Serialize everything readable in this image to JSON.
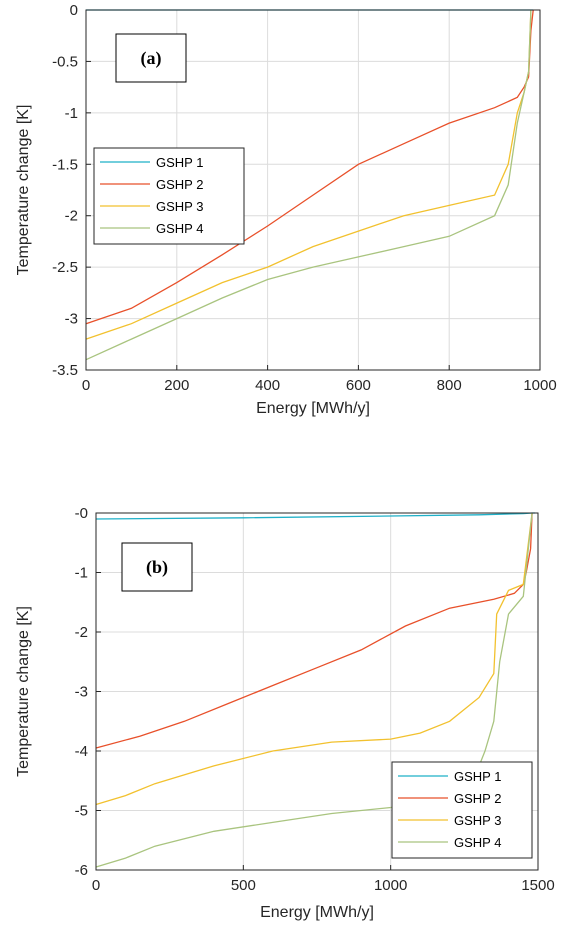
{
  "chart_data": [
    {
      "type": "line",
      "panel_label": "(a)",
      "xlabel": "Energy [MWh/y]",
      "ylabel": "Temperature change [K]",
      "xlim": [
        0,
        1000
      ],
      "ylim": [
        -3.5,
        0
      ],
      "xticks": [
        0,
        200,
        400,
        600,
        800,
        1000
      ],
      "yticks": [
        0,
        -0.5,
        -1,
        -1.5,
        -2,
        -2.5,
        -3,
        -3.5
      ],
      "xticklabels": [
        "0",
        "200",
        "400",
        "600",
        "800",
        "1000"
      ],
      "yticklabels": [
        "0",
        "-0.5",
        "-1",
        "-1.5",
        "-2",
        "-2.5",
        "-3",
        "-3.5"
      ],
      "grid": true,
      "legend_position": "left",
      "series": [
        {
          "name": "GSHP 1",
          "color": "#1fb0c8",
          "x": [
            0,
            975,
            985
          ],
          "y": [
            0,
            0,
            0
          ]
        },
        {
          "name": "GSHP 2",
          "color": "#e8502a",
          "x": [
            0,
            100,
            200,
            300,
            400,
            500,
            600,
            700,
            800,
            900,
            950,
            965,
            975,
            980,
            985
          ],
          "y": [
            -3.05,
            -2.9,
            -2.65,
            -2.38,
            -2.1,
            -1.8,
            -1.5,
            -1.3,
            -1.1,
            -0.95,
            -0.85,
            -0.75,
            -0.65,
            -0.2,
            0
          ]
        },
        {
          "name": "GSHP 3",
          "color": "#f2c12e",
          "x": [
            0,
            100,
            200,
            300,
            400,
            500,
            600,
            700,
            800,
            900,
            930,
            950,
            965,
            975,
            980
          ],
          "y": [
            -3.2,
            -3.05,
            -2.85,
            -2.65,
            -2.5,
            -2.3,
            -2.15,
            -2.0,
            -1.9,
            -1.8,
            -1.5,
            -1.0,
            -0.8,
            -0.6,
            0
          ]
        },
        {
          "name": "GSHP 4",
          "color": "#a9c47f",
          "x": [
            0,
            100,
            200,
            300,
            400,
            500,
            600,
            700,
            800,
            900,
            930,
            950,
            965,
            975,
            980
          ],
          "y": [
            -3.4,
            -3.2,
            -3.0,
            -2.8,
            -2.62,
            -2.5,
            -2.4,
            -2.3,
            -2.2,
            -2.0,
            -1.7,
            -1.1,
            -0.8,
            -0.6,
            0
          ]
        }
      ]
    },
    {
      "type": "line",
      "panel_label": "(b)",
      "xlabel": "Energy [MWh/y]",
      "ylabel": "Temperature change [K]",
      "xlim": [
        0,
        1500
      ],
      "ylim": [
        -6,
        0
      ],
      "xticks": [
        0,
        500,
        1000,
        1500
      ],
      "yticks": [
        0,
        -1,
        -2,
        -3,
        -4,
        -5,
        -6
      ],
      "xticklabels": [
        "0",
        "500",
        "1000",
        "1500"
      ],
      "yticklabels": [
        "-0",
        "-1",
        "-2",
        "-3",
        "-4",
        "-5",
        "-6"
      ],
      "grid": true,
      "legend_position": "bottom-right",
      "series": [
        {
          "name": "GSHP 1",
          "color": "#1fb0c8",
          "x": [
            0,
            500,
            1000,
            1300,
            1450,
            1480,
            1490
          ],
          "y": [
            -0.1,
            -0.08,
            -0.05,
            -0.03,
            -0.01,
            0,
            0
          ]
        },
        {
          "name": "GSHP 2",
          "color": "#e8502a",
          "x": [
            0,
            150,
            300,
            450,
            600,
            750,
            900,
            1050,
            1200,
            1350,
            1420,
            1450,
            1460,
            1475,
            1480
          ],
          "y": [
            -3.95,
            -3.75,
            -3.5,
            -3.2,
            -2.9,
            -2.6,
            -2.3,
            -1.9,
            -1.6,
            -1.45,
            -1.35,
            -1.2,
            -1.0,
            -0.6,
            0
          ]
        },
        {
          "name": "GSHP 3",
          "color": "#f2c12e",
          "x": [
            0,
            100,
            200,
            400,
            600,
            800,
            1000,
            1100,
            1200,
            1300,
            1350,
            1360,
            1400,
            1450,
            1480
          ],
          "y": [
            -4.9,
            -4.75,
            -4.55,
            -4.25,
            -4.0,
            -3.85,
            -3.8,
            -3.7,
            -3.5,
            -3.1,
            -2.7,
            -1.7,
            -1.3,
            -1.2,
            0
          ]
        },
        {
          "name": "GSHP 4",
          "color": "#a9c47f",
          "x": [
            0,
            100,
            200,
            400,
            600,
            800,
            1000,
            1200,
            1280,
            1320,
            1350,
            1370,
            1400,
            1450,
            1480
          ],
          "y": [
            -5.95,
            -5.8,
            -5.6,
            -5.35,
            -5.2,
            -5.05,
            -4.95,
            -4.8,
            -4.5,
            -4.0,
            -3.5,
            -2.5,
            -1.7,
            -1.4,
            0
          ]
        }
      ]
    }
  ]
}
